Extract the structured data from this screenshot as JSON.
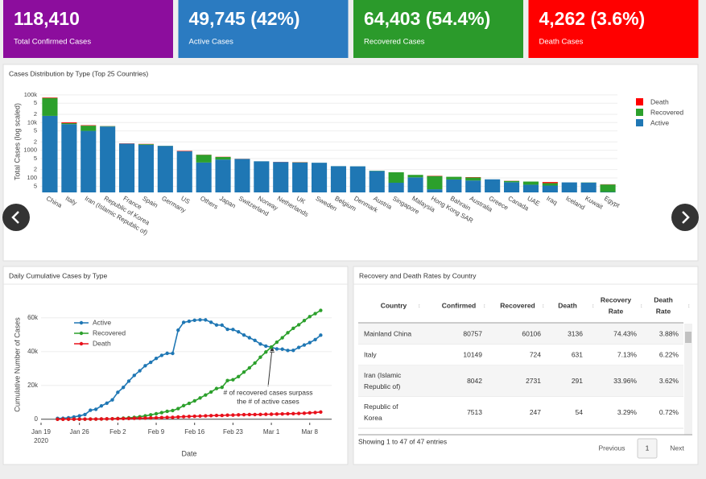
{
  "cards": [
    {
      "value": "118,410",
      "label": "Total Confirmed Cases",
      "color": "#8c0d9d"
    },
    {
      "value": "49,745 (42%)",
      "label": "Active Cases",
      "color": "#2b7bc1"
    },
    {
      "value": "64,403 (54.4%)",
      "label": "Recovered Cases",
      "color": "#2b9a2b"
    },
    {
      "value": "4,262 (3.6%)",
      "label": "Death Cases",
      "color": "#ff0000"
    }
  ],
  "chart_data": [
    {
      "type": "bar",
      "stacked": true,
      "log_scale": true,
      "grid": true,
      "legend": "top-right",
      "title": "Cases Distribution by Type (Top 25 Countries)",
      "y_label": "Total Cases (log scaled)",
      "categories": [
        "China",
        "Italy",
        "Iran (Islamic Republic of)",
        "Republic of Korea",
        "France",
        "Spain",
        "Germany",
        "US",
        "Others",
        "Japan",
        "Switzerland",
        "Norway",
        "Netherlands",
        "UK",
        "Sweden",
        "Belgium",
        "Denmark",
        "Austria",
        "Singapore",
        "Malaysia",
        "Hong Kong SAR",
        "Bahrain",
        "Australia",
        "Greece",
        "Canada",
        "UAE",
        "Iraq",
        "Iceland",
        "Kuwait",
        "Egypt"
      ],
      "series": [
        {
          "name": "Active",
          "color": "#1f77b4",
          "values": [
            17515,
            8794,
            5020,
            7212,
            1740,
            1570,
            1437,
            921,
            361,
            463,
            484,
            399,
            378,
            359,
            354,
            266,
            263,
            178,
            67,
            105,
            39,
            88,
            81,
            89,
            70,
            57,
            53,
            69,
            68,
            31
          ]
        },
        {
          "name": "Recovered",
          "color": "#2ca02c",
          "values": [
            60106,
            724,
            2731,
            247,
            12,
            90,
            18,
            8,
            325,
            108,
            3,
            1,
            0,
            8,
            1,
            1,
            1,
            4,
            93,
            24,
            78,
            22,
            23,
            0,
            8,
            17,
            12,
            0,
            1,
            27
          ]
        },
        {
          "name": "Death",
          "color": "#ff0000",
          "values": [
            3136,
            631,
            291,
            54,
            33,
            35,
            2,
            30,
            7,
            10,
            4,
            0,
            4,
            6,
            0,
            0,
            0,
            0,
            0,
            0,
            3,
            0,
            3,
            0,
            1,
            0,
            6,
            0,
            0,
            1
          ]
        }
      ],
      "ylim": [
        30,
        130000
      ],
      "yticks": [
        {
          "value": 50,
          "label": "5"
        },
        100,
        {
          "value": 200,
          "label": "2"
        },
        {
          "value": 500,
          "label": "5"
        },
        1000,
        {
          "value": 2000,
          "label": "2"
        },
        {
          "value": 5000,
          "label": "5"
        },
        {
          "value": 10000,
          "label": "10k"
        },
        {
          "value": 20000,
          "label": "2"
        },
        {
          "value": 50000,
          "label": "5"
        },
        {
          "value": 100000,
          "label": "100k"
        }
      ]
    },
    {
      "type": "line",
      "grid": true,
      "legend": "top-left",
      "title": "Daily Cumulative Cases by Type",
      "x_label": "Date",
      "y_label": "Cumulative Number of Cases",
      "x": [
        "2020-01-22",
        "2020-01-23",
        "2020-01-24",
        "2020-01-25",
        "2020-01-26",
        "2020-01-27",
        "2020-01-28",
        "2020-01-29",
        "2020-01-30",
        "2020-01-31",
        "2020-02-01",
        "2020-02-02",
        "2020-02-03",
        "2020-02-04",
        "2020-02-05",
        "2020-02-06",
        "2020-02-07",
        "2020-02-08",
        "2020-02-09",
        "2020-02-10",
        "2020-02-11",
        "2020-02-12",
        "2020-02-13",
        "2020-02-14",
        "2020-02-15",
        "2020-02-16",
        "2020-02-17",
        "2020-02-18",
        "2020-02-19",
        "2020-02-20",
        "2020-02-21",
        "2020-02-22",
        "2020-02-23",
        "2020-02-24",
        "2020-02-25",
        "2020-02-26",
        "2020-02-27",
        "2020-02-28",
        "2020-02-29",
        "2020-03-01",
        "2020-03-02",
        "2020-03-03",
        "2020-03-04",
        "2020-03-05",
        "2020-03-06",
        "2020-03-07",
        "2020-03-08",
        "2020-03-09",
        "2020-03-10"
      ],
      "series": [
        {
          "name": "Active",
          "color": "#1f77b4",
          "values": [
            510,
            606,
            879,
            1353,
            2010,
            2784,
            5340,
            5907,
            7920,
            9492,
            11495,
            15953,
            18832,
            22548,
            25947,
            28673,
            31661,
            33698,
            36000,
            37803,
            39006,
            38953,
            52702,
            57304,
            57969,
            58589,
            58807,
            58777,
            57396,
            55773,
            55678,
            53228,
            53095,
            51705,
            49793,
            48234,
            46655,
            44529,
            43288,
            42657,
            41619,
            41452,
            40696,
            40742,
            42476,
            43931,
            45325,
            47108,
            49745
          ]
        },
        {
          "name": "Recovered",
          "color": "#2ca02c",
          "values": [
            28,
            30,
            36,
            39,
            52,
            61,
            107,
            126,
            143,
            222,
            284,
            472,
            623,
            852,
            1124,
            1487,
            2011,
            2616,
            3244,
            3946,
            4683,
            5150,
            6295,
            8058,
            9395,
            10865,
            12583,
            14352,
            16121,
            18177,
            18890,
            22886,
            23394,
            25227,
            27905,
            30384,
            33277,
            36711,
            39782,
            42716,
            45602,
            48228,
            51170,
            53796,
            55865,
            58358,
            60694,
            62494,
            64403
          ]
        },
        {
          "name": "Death",
          "color": "#e8101b",
          "values": [
            17,
            18,
            26,
            42,
            56,
            82,
            131,
            133,
            171,
            213,
            259,
            362,
            426,
            492,
            564,
            634,
            719,
            806,
            906,
            1013,
            1113,
            1118,
            1371,
            1523,
            1666,
            1770,
            1868,
            2007,
            2122,
            2247,
            2251,
            2458,
            2469,
            2629,
            2708,
            2770,
            2814,
            2872,
            2941,
            2996,
            3085,
            3160,
            3254,
            3348,
            3460,
            3558,
            3802,
            3988,
            4262
          ]
        }
      ],
      "xlim": [
        "2020-01-19",
        "2020-03-12"
      ],
      "xticks": [
        {
          "value": "2020-01-19",
          "label": "Jan 19"
        },
        {
          "value": "2020-01-26",
          "label": "Jan 26"
        },
        {
          "value": "2020-02-02",
          "label": "Feb 2"
        },
        {
          "value": "2020-02-09",
          "label": "Feb 9"
        },
        {
          "value": "2020-02-16",
          "label": "Feb 16"
        },
        {
          "value": "2020-02-23",
          "label": "Feb 23"
        },
        {
          "value": "2020-03-01",
          "label": "Mar 1"
        },
        {
          "value": "2020-03-08",
          "label": "Mar 8"
        }
      ],
      "x_year_label": "2020",
      "ylim": [
        -2000,
        68000
      ],
      "yticks": [
        0,
        {
          "value": 20000,
          "label": "20k"
        },
        {
          "value": 40000,
          "label": "40k"
        },
        {
          "value": 60000,
          "label": "60k"
        }
      ],
      "annotation": [
        "# of recovered cases surpass",
        "the # of active cases"
      ]
    }
  ],
  "table": {
    "title": "Recovery and Death Rates by Country",
    "columns": [
      [
        "Country"
      ],
      [
        "Confirmed"
      ],
      [
        "Recovered"
      ],
      [
        "Death"
      ],
      [
        "Recovery",
        "Rate"
      ],
      [
        "Death",
        "Rate"
      ]
    ],
    "rows": [
      [
        [
          "Mainland China"
        ],
        "80757",
        "60106",
        "3136",
        "74.43%",
        "3.88%"
      ],
      [
        [
          "Italy"
        ],
        "10149",
        "724",
        "631",
        "7.13%",
        "6.22%"
      ],
      [
        [
          "Iran (Islamic",
          "Republic of)"
        ],
        "8042",
        "2731",
        "291",
        "33.96%",
        "3.62%"
      ],
      [
        [
          "Republic of",
          "Korea"
        ],
        "7513",
        "247",
        "54",
        "3.29%",
        "0.72%"
      ]
    ],
    "info": "Showing 1 to 47 of 47 entries",
    "pagination": {
      "previous": "Previous",
      "current": "1",
      "next": "Next"
    }
  }
}
